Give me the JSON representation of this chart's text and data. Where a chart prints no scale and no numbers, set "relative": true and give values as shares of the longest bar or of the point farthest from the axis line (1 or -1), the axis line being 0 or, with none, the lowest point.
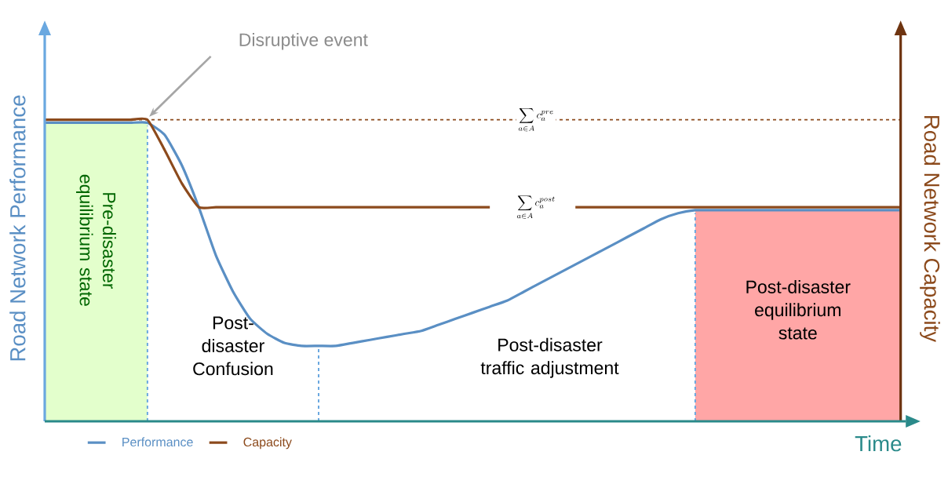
{
  "chart_data": {
    "type": "line",
    "relative": true,
    "xlabel": "Time",
    "ylabel": "Road Network Performance",
    "y2label": "Road Network Capacity",
    "categories": [
      null,
      null,
      null,
      null,
      null,
      null,
      null,
      null,
      null,
      null,
      null,
      null,
      null,
      null,
      null,
      null,
      null,
      null,
      null,
      null,
      null,
      null,
      null,
      null,
      null,
      null,
      null,
      null,
      null,
      null,
      null,
      null,
      null,
      null,
      null,
      null,
      null,
      null,
      null,
      null,
      null,
      null,
      null,
      null,
      null,
      null,
      null,
      null,
      null,
      null,
      null
    ],
    "series": [
      {
        "name": "Performance",
        "color": "#5a8fc4",
        "values": [
          0.99,
          0.99,
          0.99,
          0.99,
          0.99,
          0.99,
          0.99,
          0.95,
          0.85,
          0.71,
          0.55,
          0.43,
          0.34,
          0.29,
          0.26,
          0.25,
          0.25,
          0.25,
          0.26,
          0.27,
          0.28,
          0.29,
          0.3,
          0.32,
          0.34,
          0.36,
          0.38,
          0.4,
          0.43,
          0.46,
          0.49,
          0.52,
          0.55,
          0.58,
          0.61,
          0.64,
          0.67,
          0.69,
          0.7,
          0.7,
          0.7,
          0.7,
          0.7,
          0.7,
          0.7,
          0.7,
          0.7,
          0.7,
          0.7,
          0.7,
          0.7
        ]
      },
      {
        "name": "Capacity",
        "color": "#8c4a1c",
        "values": [
          1.0,
          1.0,
          1.0,
          1.0,
          1.0,
          1.0,
          1.0,
          0.9,
          0.79,
          0.71,
          0.71,
          0.71,
          0.71,
          0.71,
          0.71,
          0.71,
          0.71,
          0.71,
          0.71,
          0.71,
          0.71,
          0.71,
          0.71,
          0.71,
          0.71,
          0.71,
          0.71,
          null,
          null,
          null,
          null,
          0.71,
          0.71,
          0.71,
          0.71,
          0.71,
          0.71,
          0.71,
          0.71,
          0.71,
          0.71,
          0.71,
          0.71,
          0.71,
          0.71,
          0.71,
          0.71,
          0.71,
          0.71,
          0.71,
          0.71
        ]
      }
    ],
    "ref_lines": [
      {
        "axis": "y",
        "value": 1.0,
        "color": "#8c4a1c",
        "line_style": "dashed",
        "label": "\\sum_{a\\in A} c_a^{pre}"
      }
    ],
    "annotations": [
      "Disruptive event",
      "Pre-disaster equilibrium state",
      "Post-disaster Confusion",
      "Post-disaster traffic adjustment",
      "Post-disaster equilibrium state",
      "\\sum_{a\\in A} c_a^{post}"
    ],
    "legend": "bottom left",
    "line_style": "solid",
    "marker": "none"
  }
}
